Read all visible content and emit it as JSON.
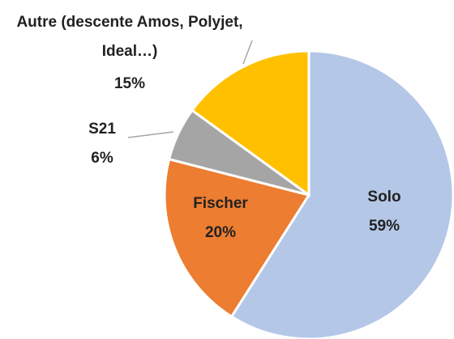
{
  "chart_data": {
    "type": "pie",
    "categories": [
      "Solo",
      "Fischer",
      "S21",
      "Autre (descente Amos, Polyjet, Ideal…)"
    ],
    "values": [
      59,
      20,
      6,
      15
    ],
    "value_labels": [
      "59%",
      "20%",
      "6%",
      "15%"
    ],
    "colors": [
      "#b4c7e7",
      "#ed7d31",
      "#a5a5a5",
      "#ffc000"
    ]
  }
}
